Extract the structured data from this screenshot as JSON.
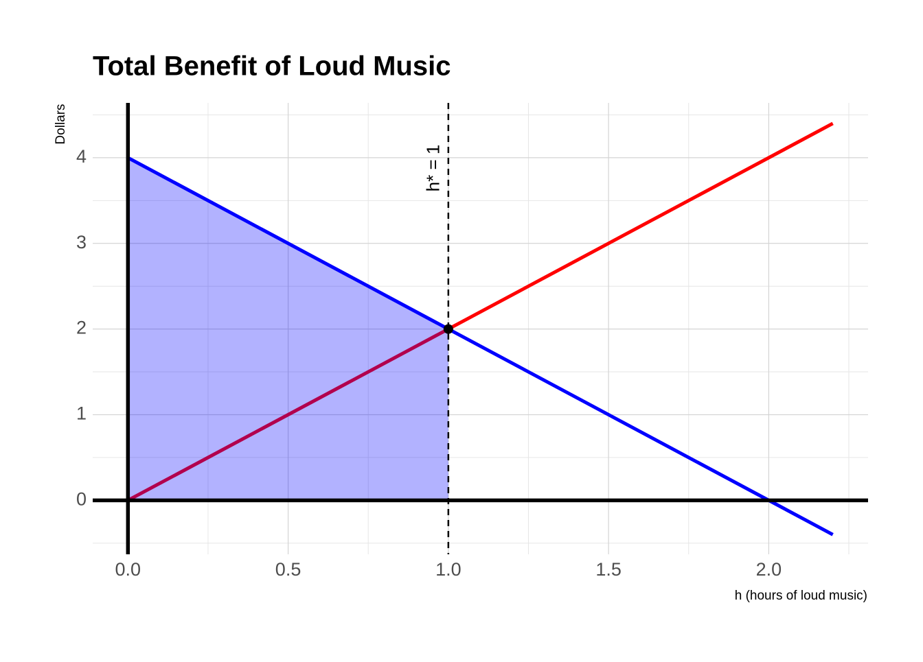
{
  "chart_data": {
    "type": "line",
    "title": "Total Benefit of Loud Music",
    "x_label": "h (hours of loud music)",
    "y_label": "Dollars",
    "xlim": [
      -0.11,
      2.31
    ],
    "ylim": [
      -0.63,
      4.64
    ],
    "xticks": [
      {
        "value": 0,
        "label": "0.0"
      },
      0.5,
      {
        "value": 1,
        "label": "1.0"
      },
      1.5,
      {
        "value": 2,
        "label": "2.0"
      }
    ],
    "yticks": [
      0,
      1,
      2,
      3,
      4
    ],
    "grid": true,
    "zero_lines": true,
    "series": [
      {
        "x": [
          0,
          2.2
        ],
        "values": [
          0,
          4.4
        ],
        "color": "#ff0000"
      },
      {
        "x": [
          0,
          1
        ],
        "values": [
          4,
          2
        ],
        "color": "#0000ff",
        "fill": true
      },
      {
        "x": [
          0,
          2.2
        ],
        "values": [
          4,
          -0.4
        ],
        "color": "#0000ff"
      }
    ],
    "vlines": [
      {
        "x": 1,
        "label": "h* = 1"
      }
    ],
    "points": [
      {
        "x": 1,
        "y": 2
      }
    ]
  }
}
